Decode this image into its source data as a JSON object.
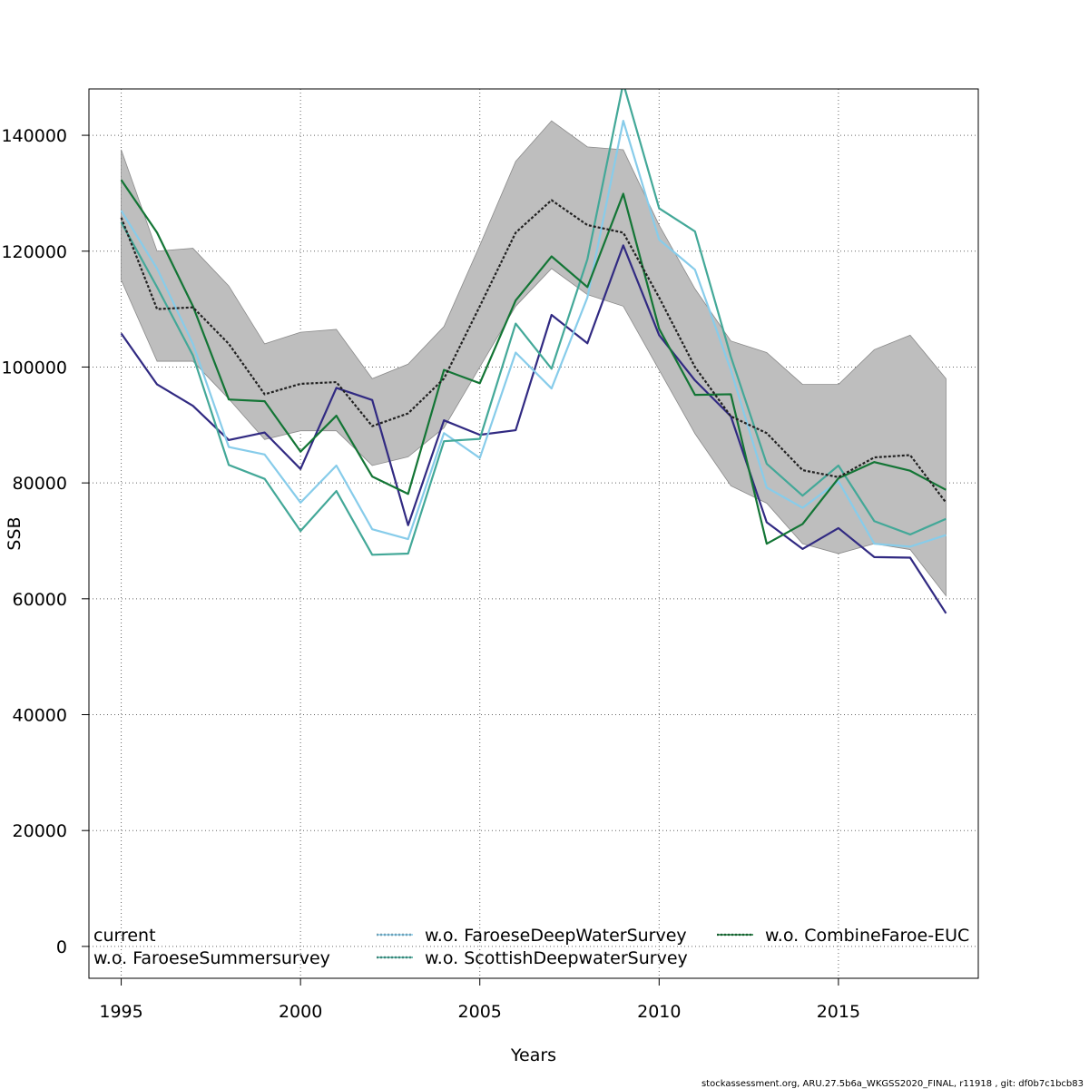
{
  "chart_data": {
    "type": "line",
    "xlabel": "Years",
    "ylabel": "SSB",
    "xlim": [
      1994.1,
      2018.9
    ],
    "ylim": [
      -5500,
      148000
    ],
    "x_ticks": [
      1995,
      2000,
      2005,
      2010,
      2015
    ],
    "y_ticks": [
      0,
      20000,
      40000,
      60000,
      80000,
      100000,
      120000,
      140000
    ],
    "grid": true,
    "legend_position": "bottom",
    "x": [
      1995,
      1996,
      1997,
      1998,
      1999,
      2000,
      2001,
      2002,
      2003,
      2004,
      2005,
      2006,
      2007,
      2008,
      2009,
      2010,
      2011,
      2012,
      2013,
      2014,
      2015,
      2016,
      2017,
      2018
    ],
    "confidence_band": {
      "color": "#bebebe",
      "lower": [
        115000,
        101000,
        101000,
        94500,
        87500,
        89000,
        89000,
        83000,
        84500,
        89500,
        100000,
        110500,
        117000,
        112500,
        110500,
        99500,
        88500,
        79500,
        76500,
        69500,
        67800,
        69500,
        68500,
        60500
      ],
      "upper": [
        137500,
        120000,
        120500,
        114000,
        104000,
        106000,
        106500,
        98000,
        100500,
        107000,
        121000,
        135500,
        142500,
        138000,
        137500,
        124500,
        113500,
        104500,
        102500,
        97000,
        97000,
        103000,
        105500,
        98000
      ]
    },
    "series": [
      {
        "name": "current",
        "color": "#222222",
        "dash": true,
        "values": [
          125800,
          110000,
          110300,
          104000,
          95300,
          97100,
          97400,
          89800,
          92000,
          98000,
          110500,
          123200,
          128800,
          124500,
          123200,
          112000,
          100000,
          91500,
          88600,
          82200,
          81000,
          84400,
          84800,
          76600
        ]
      },
      {
        "name": "w.o. FaroeseSummersurvey",
        "color": "#312a82",
        "dash": false,
        "values": [
          105800,
          97000,
          93300,
          87400,
          88700,
          82400,
          96400,
          94300,
          72700,
          90800,
          88300,
          89100,
          109000,
          104100,
          121000,
          105500,
          97700,
          91500,
          73200,
          68600,
          72200,
          67200,
          67100,
          57500
        ]
      },
      {
        "name": "w.o. FaroeseDeepWaterSurvey",
        "color": "#87ccea",
        "dash": false,
        "values": [
          127000,
          117000,
          104000,
          86200,
          84900,
          76600,
          83000,
          72000,
          70300,
          88600,
          84300,
          102500,
          96300,
          112000,
          142500,
          122000,
          116800,
          99500,
          79200,
          75700,
          80300,
          69500,
          69000,
          71000
        ]
      },
      {
        "name": "w.o. ScottishDeepwaterSurvey",
        "color": "#43a898",
        "dash": false,
        "values": [
          125000,
          113800,
          102000,
          83100,
          80700,
          71700,
          78600,
          67600,
          67800,
          87200,
          87600,
          107500,
          99700,
          118600,
          149000,
          127400,
          123400,
          101800,
          83300,
          77800,
          83000,
          73400,
          71100,
          73800
        ]
      },
      {
        "name": "w.o. CombineFaroe-EUC",
        "color": "#137535",
        "dash": false,
        "values": [
          132300,
          123200,
          110500,
          94400,
          94100,
          85400,
          91600,
          81100,
          78100,
          99500,
          97200,
          111500,
          119100,
          113800,
          129900,
          106600,
          95200,
          95300,
          69500,
          72900,
          80800,
          83600,
          82100,
          78800
        ]
      }
    ],
    "legend": [
      {
        "label": "current",
        "series": 0
      },
      {
        "label": "w.o. FaroeseSummersurvey",
        "series": 1
      },
      {
        "label": "w.o. FaroeseDeepWaterSurvey",
        "series": 2
      },
      {
        "label": "w.o. ScottishDeepwaterSurvey",
        "series": 3
      },
      {
        "label": "w.o. CombineFaroe-EUC",
        "series": 4
      }
    ],
    "footer": "stockassessment.org, ARU.27.5b6a_WKGSS2020_FINAL, r11918 , git: df0b7c1bcb83"
  }
}
